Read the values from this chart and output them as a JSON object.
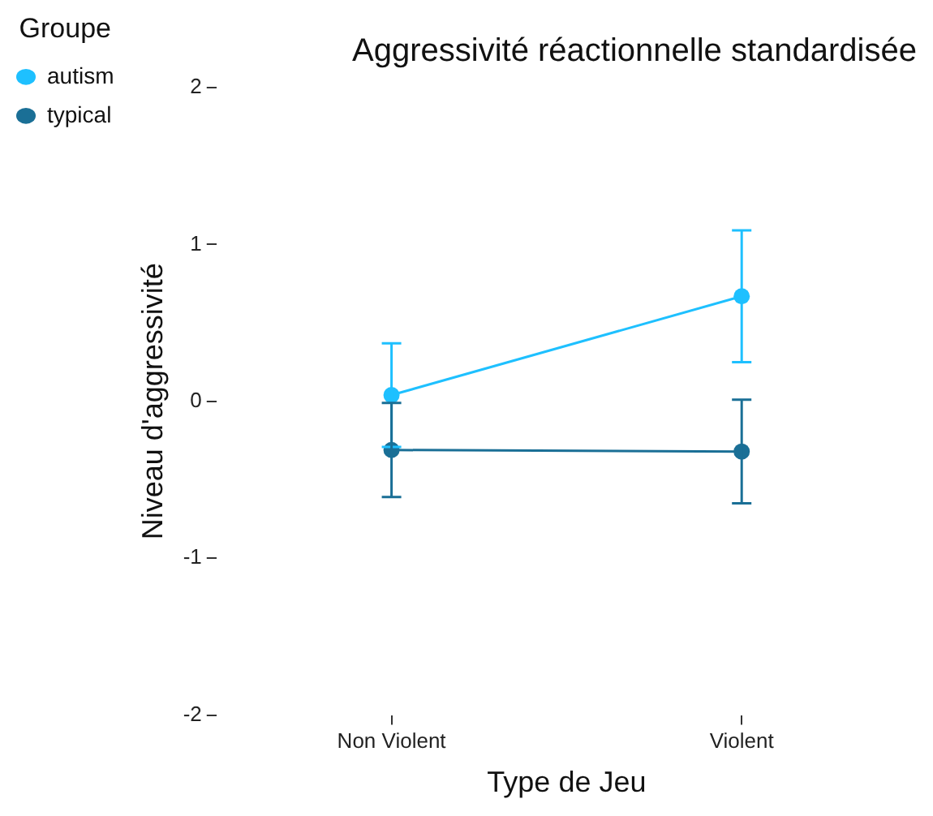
{
  "chart_data": {
    "type": "line",
    "title": "Aggressivité réactionnelle standardisée",
    "xlabel": "Type de Jeu",
    "ylabel": "Niveau d'aggressivité",
    "legend_title": "Groupe",
    "categories": [
      "Non Violent",
      "Violent"
    ],
    "series": [
      {
        "name": "autism",
        "color": "#1ec0ff",
        "values": [
          0.04,
          0.67
        ],
        "errors": [
          0.33,
          0.42
        ]
      },
      {
        "name": "typical",
        "color": "#1a6f96",
        "values": [
          -0.31,
          -0.32
        ],
        "errors": [
          0.3,
          0.33
        ]
      }
    ],
    "ylim": [
      -2,
      2
    ],
    "yticks": [
      -2,
      -1,
      0,
      1,
      2
    ],
    "grid": false,
    "legend": "top left",
    "marker": "circle",
    "line_style": "solid"
  }
}
